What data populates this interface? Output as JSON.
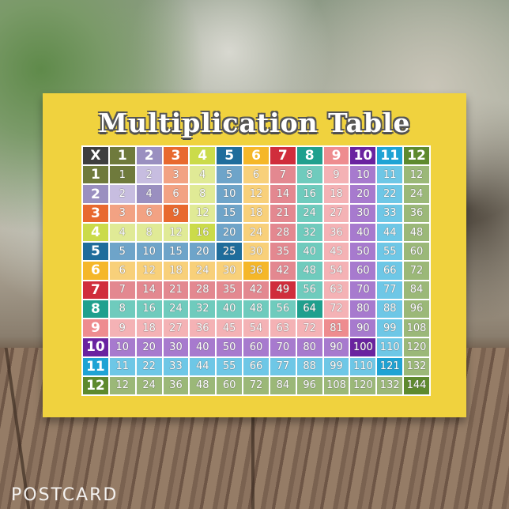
{
  "title": "Multiplication Table",
  "corner_label": "X",
  "watermark": "POSTCARD",
  "numbers": [
    1,
    2,
    3,
    4,
    5,
    6,
    7,
    8,
    9,
    10,
    11,
    12
  ],
  "colors": {
    "corner": "#3e3e3e",
    "dark": [
      "#6f7a3c",
      "#9a8fc0",
      "#e8692f",
      "#cbdb4a",
      "#1f6d9c",
      "#f5b729",
      "#d02d3c",
      "#1fa08e",
      "#ee8c8f",
      "#6a23a0",
      "#1fa3d4",
      "#5e8a2e"
    ],
    "light": [
      "#b5b99a",
      "#c7bde0",
      "#f2a283",
      "#e0ea96",
      "#6ea4c9",
      "#f8d07a",
      "#e38890",
      "#6fcbbd",
      "#f4b2b5",
      "#a77ace",
      "#6ec7e6",
      "#9bb878"
    ]
  },
  "products": [
    [
      1,
      2,
      3,
      4,
      5,
      6,
      7,
      8,
      9,
      10,
      11,
      12
    ],
    [
      2,
      4,
      6,
      8,
      10,
      12,
      14,
      16,
      18,
      20,
      22,
      24
    ],
    [
      3,
      6,
      9,
      12,
      15,
      18,
      21,
      24,
      27,
      30,
      33,
      36
    ],
    [
      4,
      8,
      12,
      16,
      20,
      24,
      28,
      32,
      36,
      40,
      44,
      48
    ],
    [
      5,
      10,
      15,
      20,
      25,
      30,
      35,
      40,
      45,
      50,
      55,
      60
    ],
    [
      6,
      12,
      18,
      24,
      30,
      36,
      42,
      48,
      54,
      60,
      66,
      72
    ],
    [
      7,
      14,
      21,
      28,
      35,
      42,
      49,
      56,
      63,
      70,
      77,
      84
    ],
    [
      8,
      16,
      24,
      32,
      40,
      48,
      56,
      64,
      72,
      80,
      88,
      96
    ],
    [
      9,
      18,
      27,
      36,
      45,
      54,
      63,
      72,
      81,
      90,
      99,
      108
    ],
    [
      10,
      20,
      30,
      40,
      50,
      60,
      70,
      80,
      90,
      100,
      110,
      120
    ],
    [
      11,
      22,
      33,
      44,
      55,
      66,
      77,
      88,
      99,
      110,
      121,
      132
    ],
    [
      12,
      24,
      36,
      48,
      60,
      72,
      84,
      96,
      108,
      120,
      132,
      144
    ]
  ]
}
